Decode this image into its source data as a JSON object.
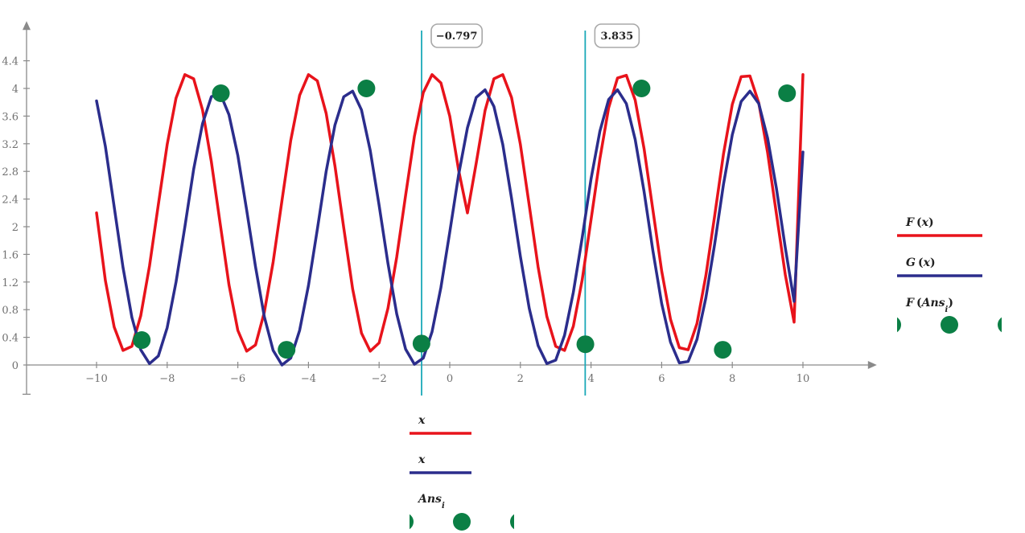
{
  "chart_data": {
    "type": "line",
    "xlim": [
      -12,
      12
    ],
    "ylim": [
      -0.4,
      4.8
    ],
    "x_ticks": [
      "−10",
      "−8",
      "−6",
      "−4",
      "−2",
      "0",
      "2",
      "4",
      "6",
      "8",
      "10"
    ],
    "x_tick_values": [
      -10,
      -8,
      -6,
      -4,
      -2,
      0,
      2,
      4,
      6,
      8,
      10
    ],
    "y_ticks": [
      "0",
      "0.4",
      "0.8",
      "1.2",
      "1.6",
      "2",
      "2.4",
      "2.8",
      "3.2",
      "3.6",
      "4",
      "4.4"
    ],
    "y_tick_values": [
      0,
      0.4,
      0.8,
      1.2,
      1.6,
      2,
      2.4,
      2.8,
      3.2,
      3.6,
      4,
      4.4
    ],
    "grid": false,
    "series": [
      {
        "name": "F(x)",
        "color": "#e8131b",
        "x": [
          -10,
          -9.75,
          -9.5,
          -9.25,
          -9,
          -8.75,
          -8.5,
          -8.25,
          -8,
          -7.75,
          -7.5,
          -7.25,
          -7,
          -6.75,
          -6.5,
          -6.25,
          -6,
          -5.75,
          -5.5,
          -5.25,
          -5,
          -4.75,
          -4.5,
          -4.25,
          -4,
          -3.75,
          -3.5,
          -3.25,
          -3,
          -2.75,
          -2.5,
          -2.25,
          -2,
          -1.75,
          -1.5,
          -1.25,
          -1,
          -0.75,
          -0.5,
          -0.25,
          0,
          0.25,
          0.5,
          0.75,
          1,
          1.25,
          1.5,
          1.75,
          2,
          2.25,
          2.5,
          2.75,
          3,
          3.25,
          3.5,
          3.75,
          4,
          4.25,
          4.5,
          4.75,
          5,
          5.25,
          5.5,
          5.75,
          6,
          6.25,
          6.5,
          6.75,
          7,
          7.25,
          7.5,
          7.75,
          8,
          8.25,
          8.5,
          8.75,
          9,
          9.25,
          9.5,
          9.75,
          10
        ],
        "y": [
          2.2,
          1.22,
          0.55,
          0.21,
          0.27,
          0.71,
          1.43,
          2.32,
          3.19,
          3.86,
          4.2,
          4.14,
          3.69,
          2.94,
          2.05,
          1.16,
          0.5,
          0.2,
          0.29,
          0.76,
          1.49,
          2.38,
          3.25,
          3.9,
          4.2,
          4.11,
          3.64,
          2.88,
          1.98,
          1.1,
          0.46,
          0.2,
          0.32,
          0.82,
          1.56,
          2.45,
          3.31,
          3.94,
          4.2,
          4.08,
          3.6,
          2.82,
          2.2,
          2.92,
          3.68,
          4.14,
          4.2,
          3.87,
          3.19,
          2.31,
          1.42,
          0.7,
          0.27,
          0.21,
          0.56,
          1.23,
          2.1,
          2.98,
          3.72,
          4.15,
          4.19,
          3.83,
          3.13,
          2.25,
          1.36,
          0.66,
          0.25,
          0.22,
          0.6,
          1.29,
          2.16,
          3.05,
          3.77,
          4.17,
          4.18,
          3.79,
          3.07,
          2.18,
          1.31,
          0.62,
          4.2
        ]
      },
      {
        "name": "G(x)",
        "color": "#2b2d8c",
        "x": [
          -10,
          -9.75,
          -9.5,
          -9.25,
          -9,
          -8.75,
          -8.5,
          -8.25,
          -8,
          -7.75,
          -7.5,
          -7.25,
          -7,
          -6.75,
          -6.5,
          -6.25,
          -6,
          -5.75,
          -5.5,
          -5.25,
          -5,
          -4.75,
          -4.5,
          -4.25,
          -4,
          -3.75,
          -3.5,
          -3.25,
          -3,
          -2.75,
          -2.5,
          -2.25,
          -2,
          -1.75,
          -1.5,
          -1.25,
          -1,
          -0.75,
          -0.5,
          -0.25,
          0,
          0.25,
          0.5,
          0.75,
          1,
          1.25,
          1.5,
          1.75,
          2,
          2.25,
          2.5,
          2.75,
          3,
          3.25,
          3.5,
          3.75,
          4,
          4.25,
          4.5,
          4.75,
          5,
          5.25,
          5.5,
          5.75,
          6,
          6.25,
          6.5,
          6.75,
          7,
          7.25,
          7.5,
          7.75,
          8,
          8.25,
          8.5,
          8.75,
          9,
          9.25,
          9.5,
          9.75,
          10
        ],
        "y": [
          3.82,
          3.16,
          2.29,
          1.41,
          0.69,
          0.22,
          0.02,
          0.13,
          0.54,
          1.2,
          2.0,
          2.83,
          3.49,
          3.88,
          3.93,
          3.62,
          3.03,
          2.24,
          1.42,
          0.7,
          0.21,
          0.0,
          0.1,
          0.5,
          1.15,
          1.96,
          2.8,
          3.47,
          3.88,
          3.96,
          3.69,
          3.1,
          2.31,
          1.47,
          0.74,
          0.23,
          0.01,
          0.1,
          0.48,
          1.12,
          1.92,
          2.75,
          3.43,
          3.87,
          3.98,
          3.74,
          3.19,
          2.41,
          1.57,
          0.82,
          0.28,
          0.02,
          0.07,
          0.43,
          1.05,
          1.84,
          2.69,
          3.38,
          3.84,
          3.98,
          3.78,
          3.26,
          2.51,
          1.66,
          0.89,
          0.33,
          0.03,
          0.05,
          0.37,
          0.97,
          1.75,
          2.61,
          3.33,
          3.81,
          3.96,
          3.78,
          3.28,
          2.55,
          1.7,
          0.92,
          3.08
        ]
      },
      {
        "name": "F(Ans_i)",
        "color": "#0b7f45",
        "style": "markers",
        "x": [
          -8.72,
          -6.48,
          -4.62,
          -2.36,
          -0.8,
          3.84,
          5.43,
          7.73,
          9.55
        ],
        "y": [
          0.36,
          3.93,
          0.22,
          4.0,
          0.31,
          0.3,
          4.0,
          0.22,
          3.93
        ]
      }
    ],
    "markers": [
      {
        "x": -0.797,
        "label": "−0.797",
        "color": "#1aa8b8"
      },
      {
        "x": 3.835,
        "label": "3.835",
        "color": "#1aa8b8"
      }
    ],
    "legend_right": [
      {
        "label": "F",
        "arg": "x",
        "color": "#e8131b",
        "kind": "line"
      },
      {
        "label": "G",
        "arg": "x",
        "color": "#2b2d8c",
        "kind": "line"
      },
      {
        "label": "F",
        "arg": "Ans",
        "sub": "i",
        "color": "#0b7f45",
        "kind": "markers"
      }
    ],
    "legend_bottom": [
      {
        "label": "x",
        "color": "#e8131b",
        "kind": "line"
      },
      {
        "label": "x",
        "color": "#2b2d8c",
        "kind": "line"
      },
      {
        "label": "Ans",
        "sub": "i",
        "color": "#0b7f45",
        "kind": "markers"
      }
    ]
  }
}
